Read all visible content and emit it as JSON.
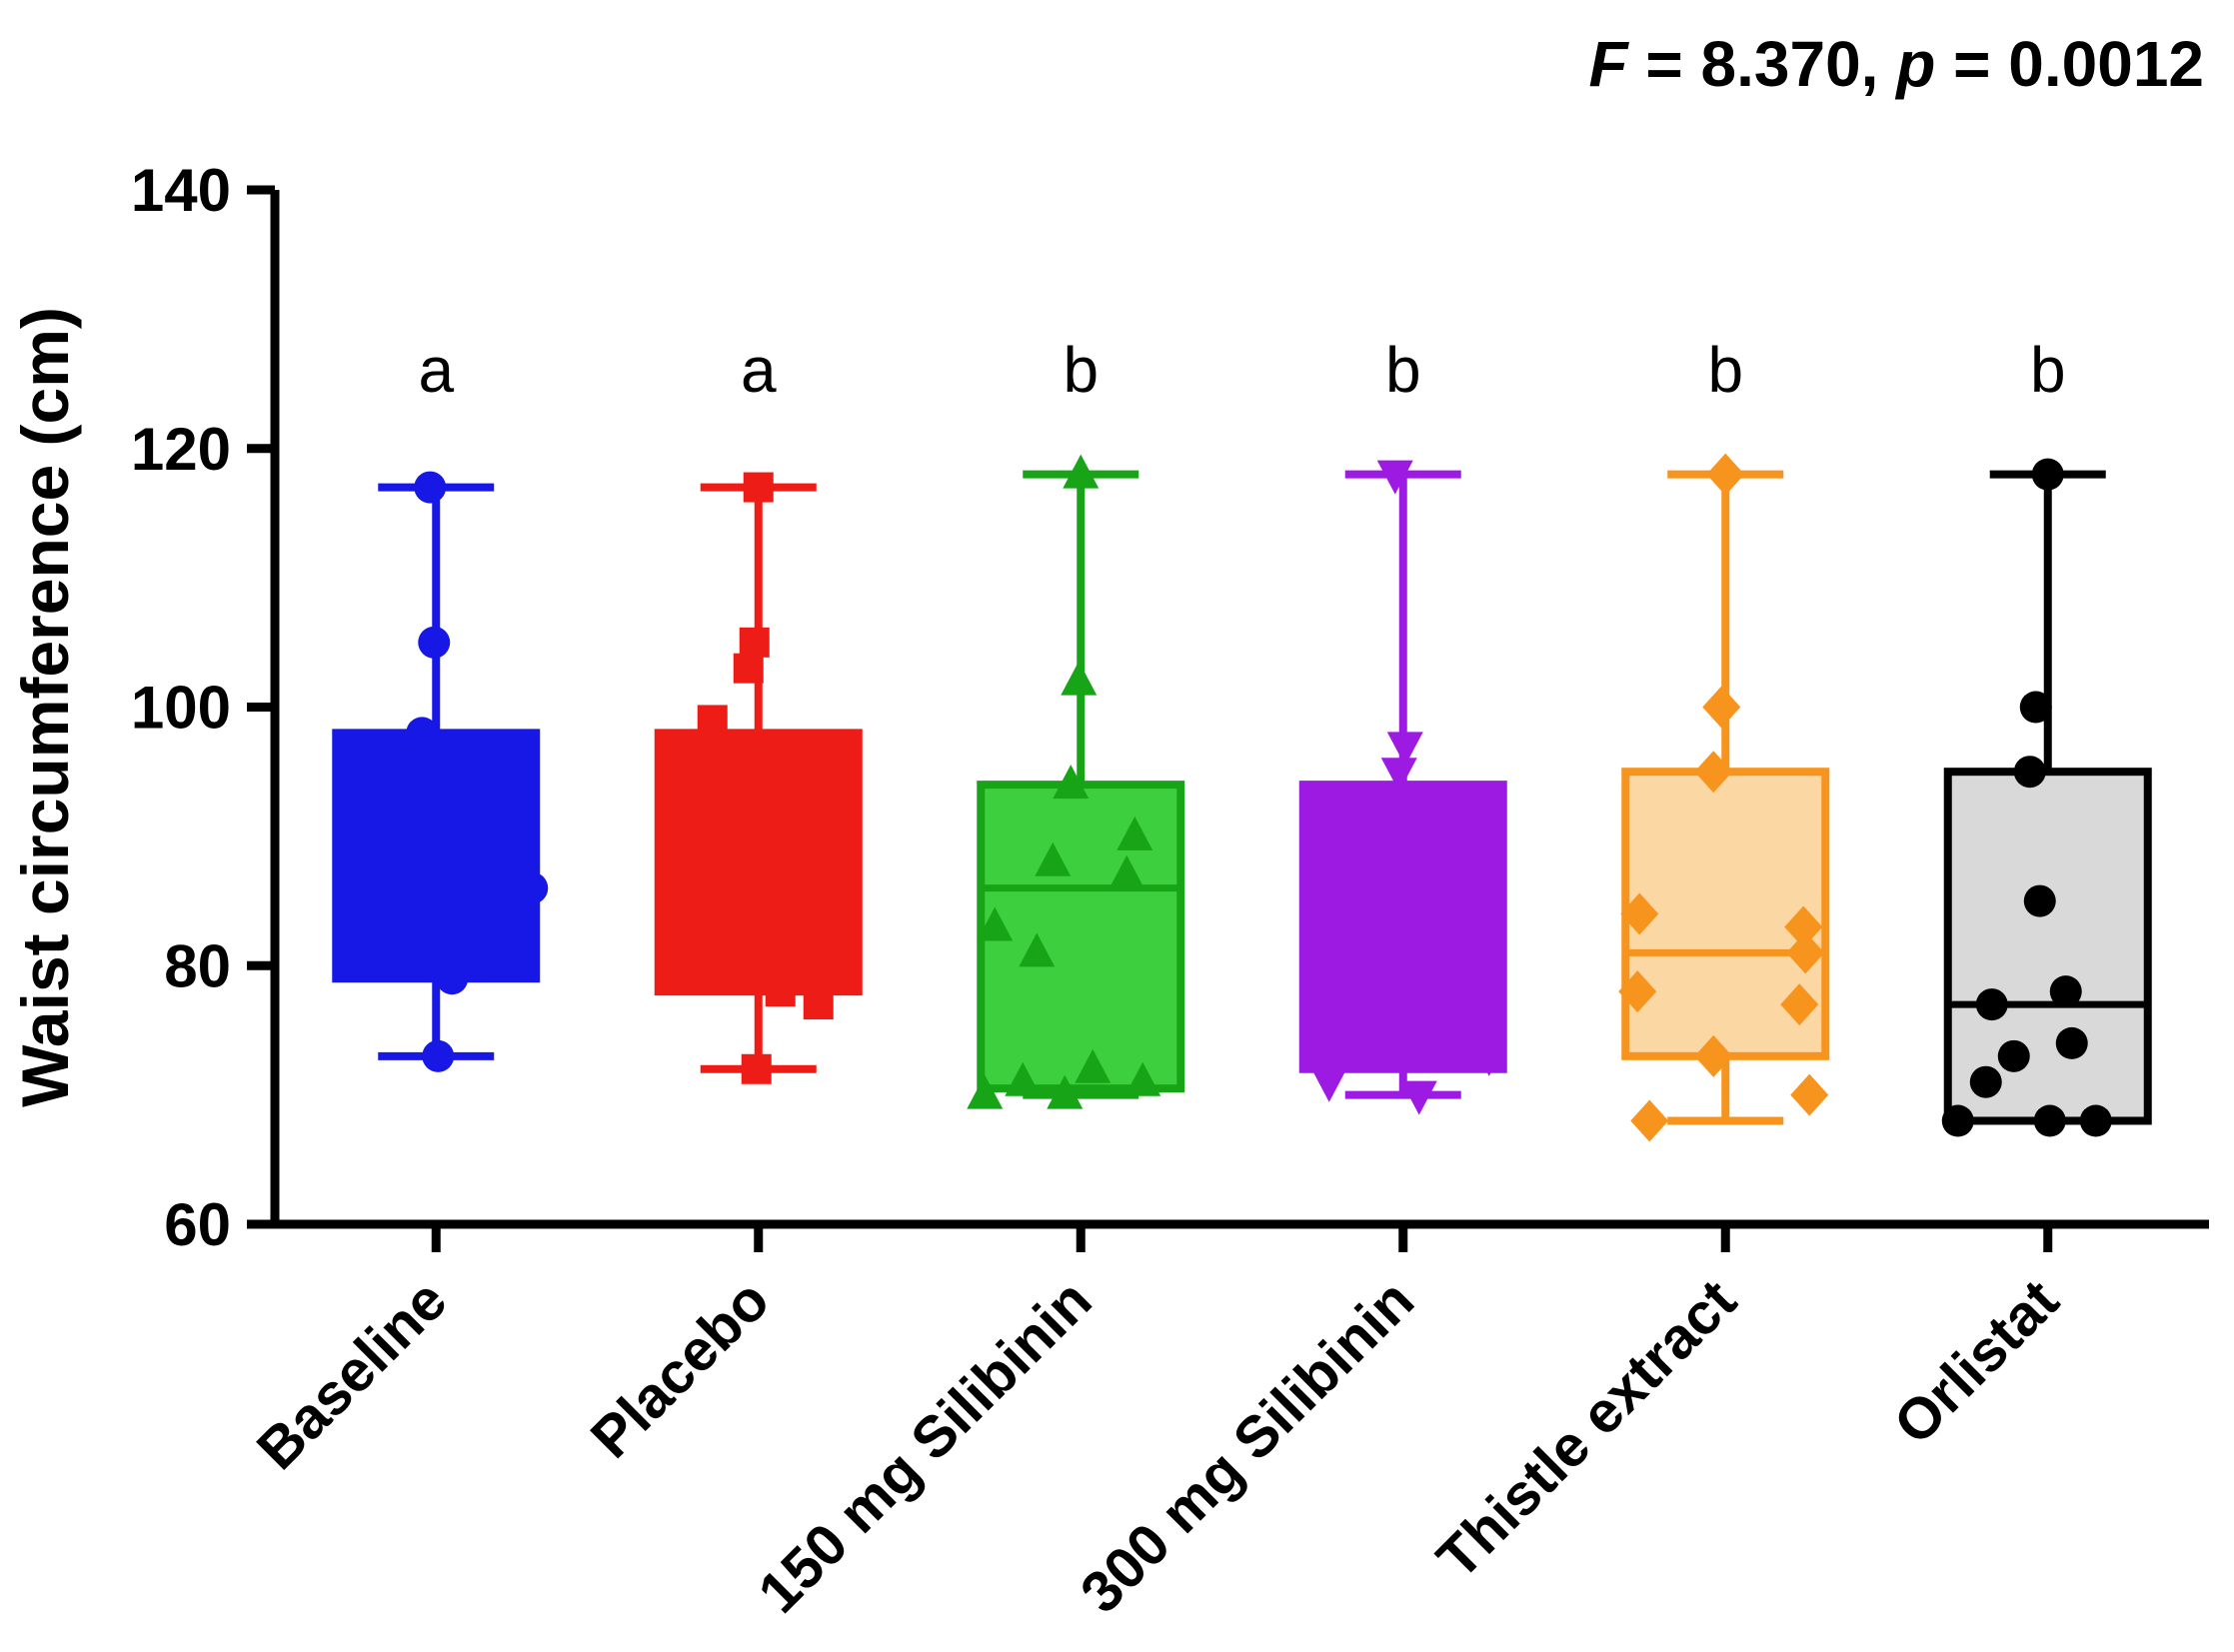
{
  "chart_data": {
    "type": "box",
    "title": "",
    "ylabel": "Waist circumference (cm)",
    "xlabel": "",
    "ylim": [
      60,
      140
    ],
    "yticks": [
      60,
      80,
      100,
      120,
      140
    ],
    "grid": false,
    "legend": false,
    "stat_annotation": {
      "full_text": "F = 8.370, p = 0.0012",
      "parts": [
        {
          "text": "F",
          "italic": true
        },
        {
          "text": " = 8.370, ",
          "italic": false
        },
        {
          "text": "p",
          "italic": true
        },
        {
          "text": " = 0.0012",
          "italic": false
        }
      ]
    },
    "groups": [
      {
        "label": "Baseline",
        "slug": "baseline",
        "letter": "a",
        "stroke": "#1818e6",
        "fill": "#1818e6",
        "point_color": "#1818e6",
        "marker": "circle",
        "box": {
          "whisker_low": 73,
          "q1": 79,
          "median": 87,
          "q3": 98,
          "whisker_high": 117
        },
        "points": [
          [
            117,
            -6
          ],
          [
            105,
            -2
          ],
          [
            98,
            -14
          ],
          [
            87,
            58
          ],
          [
            86,
            96
          ],
          [
            80,
            -40
          ],
          [
            79,
            16
          ],
          [
            73,
            2
          ]
        ]
      },
      {
        "label": "Placebo",
        "slug": "placebo",
        "letter": "a",
        "stroke": "#ed1c16",
        "fill": "#ed1c16",
        "point_color": "#ed1c16",
        "marker": "square",
        "box": {
          "whisker_low": 72,
          "q1": 78,
          "median": 86,
          "q3": 98,
          "whisker_high": 117
        },
        "points": [
          [
            117,
            0
          ],
          [
            105,
            -4
          ],
          [
            103,
            -10
          ],
          [
            99,
            -46
          ],
          [
            80,
            -62
          ],
          [
            78,
            22
          ],
          [
            77,
            60
          ],
          [
            72,
            -2
          ]
        ]
      },
      {
        "label": "150 mg Silibinin",
        "slug": "silibinin-150",
        "letter": "b",
        "stroke": "#17a517",
        "fill": "#3ecf3e",
        "point_color": "#17a517",
        "marker": "triangle-up",
        "box": {
          "whisker_low": 70,
          "q1": 70.5,
          "median": 86,
          "q3": 94,
          "whisker_high": 118
        },
        "points": [
          [
            118,
            0
          ],
          [
            102,
            -2
          ],
          [
            94,
            -10
          ],
          [
            90,
            54
          ],
          [
            88,
            -28
          ],
          [
            87,
            46
          ],
          [
            83,
            -86
          ],
          [
            81,
            -44
          ],
          [
            72,
            12
          ],
          [
            71,
            -58
          ],
          [
            71,
            62
          ],
          [
            70,
            -96
          ],
          [
            70,
            -16
          ]
        ]
      },
      {
        "label": "300 mg Silibinin",
        "slug": "silibinin-300",
        "letter": "b",
        "stroke": "#9d1ae3",
        "fill": "#9d1ae3",
        "point_color": "#9d1ae3",
        "marker": "triangle-down",
        "box": {
          "whisker_low": 70,
          "q1": 72,
          "median": 83,
          "q3": 94,
          "whisker_high": 118
        },
        "points": [
          [
            118,
            -8
          ],
          [
            97,
            2
          ],
          [
            95,
            -4
          ],
          [
            73,
            86
          ],
          [
            71,
            -74
          ],
          [
            70,
            16
          ]
        ]
      },
      {
        "label": "Thistle extract",
        "slug": "thistle-extract",
        "letter": "b",
        "stroke": "#f7941d",
        "fill": "#fbd7a4",
        "point_color": "#f7941d",
        "marker": "diamond",
        "box": {
          "whisker_low": 68,
          "q1": 73,
          "median": 81,
          "q3": 95,
          "whisker_high": 118
        },
        "points": [
          [
            118,
            0
          ],
          [
            100,
            -4
          ],
          [
            95,
            -12
          ],
          [
            84,
            -86
          ],
          [
            83,
            78
          ],
          [
            81,
            80
          ],
          [
            78,
            -88
          ],
          [
            77,
            74
          ],
          [
            73,
            -12
          ],
          [
            70,
            84
          ],
          [
            68,
            -76
          ]
        ]
      },
      {
        "label": "Orlistat",
        "slug": "orlistat",
        "letter": "b",
        "stroke": "#000000",
        "fill": "#d9d9d9",
        "point_color": "#000000",
        "marker": "circle",
        "box": {
          "whisker_low": 68,
          "q1": 68,
          "median": 77,
          "q3": 95,
          "whisker_high": 118
        },
        "points": [
          [
            118,
            0
          ],
          [
            100,
            -12
          ],
          [
            95,
            -18
          ],
          [
            85,
            -8
          ],
          [
            78,
            18
          ],
          [
            77,
            -56
          ],
          [
            74,
            24
          ],
          [
            73,
            -34
          ],
          [
            71,
            -62
          ],
          [
            68,
            -90
          ],
          [
            68,
            2
          ],
          [
            68,
            48
          ]
        ]
      }
    ]
  }
}
